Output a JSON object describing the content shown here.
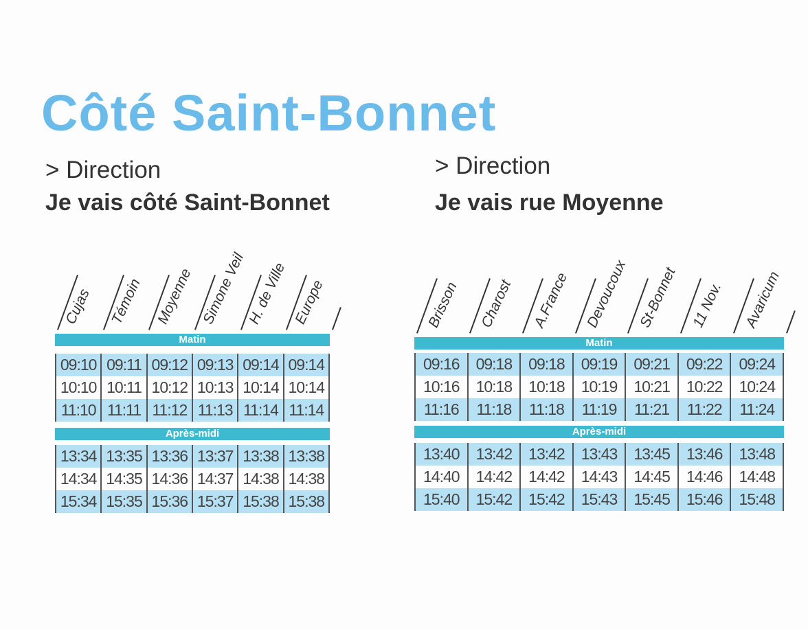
{
  "title": "Côté Saint-Bonnet",
  "colors": {
    "title": "#6bbbea",
    "band": "#3db9d0",
    "row_alt": "#b6e0f3"
  },
  "left": {
    "direction": "> Direction",
    "destination": "Je vais côté Saint-Bonnet",
    "stops": [
      "Cujas",
      "Témoin",
      "Moyenne",
      "Simone Veil",
      "H. de Ville",
      "Europe"
    ],
    "morning_label": "Matin",
    "morning": [
      [
        "09:10",
        "09:11",
        "09:12",
        "09:13",
        "09:14",
        "09:14"
      ],
      [
        "10:10",
        "10:11",
        "10:12",
        "10:13",
        "10:14",
        "10:14"
      ],
      [
        "11:10",
        "11:11",
        "11:12",
        "11:13",
        "11:14",
        "11:14"
      ]
    ],
    "afternoon_label": "Après-midi",
    "afternoon": [
      [
        "13:34",
        "13:35",
        "13:36",
        "13:37",
        "13:38",
        "13:38"
      ],
      [
        "14:34",
        "14:35",
        "14:36",
        "14:37",
        "14:38",
        "14:38"
      ],
      [
        "15:34",
        "15:35",
        "15:36",
        "15:37",
        "15:38",
        "15:38"
      ]
    ]
  },
  "right": {
    "direction": "> Direction",
    "destination": "Je vais rue Moyenne",
    "stops": [
      "Brisson",
      "Charost",
      "A.France",
      "Devoucoux",
      "St-Bonnet",
      "11 Nov.",
      "Avaricum"
    ],
    "morning_label": "Matin",
    "morning": [
      [
        "09:16",
        "09:18",
        "09:18",
        "09:19",
        "09:21",
        "09:22",
        "09:24"
      ],
      [
        "10:16",
        "10:18",
        "10:18",
        "10:19",
        "10:21",
        "10:22",
        "10:24"
      ],
      [
        "11:16",
        "11:18",
        "11:18",
        "11:19",
        "11:21",
        "11:22",
        "11:24"
      ]
    ],
    "afternoon_label": "Après-midi",
    "afternoon": [
      [
        "13:40",
        "13:42",
        "13:42",
        "13:43",
        "13:45",
        "13:46",
        "13:48"
      ],
      [
        "14:40",
        "14:42",
        "14:42",
        "14:43",
        "14:45",
        "14:46",
        "14:48"
      ],
      [
        "15:40",
        "15:42",
        "15:42",
        "15:43",
        "15:45",
        "15:46",
        "15:48"
      ]
    ]
  }
}
